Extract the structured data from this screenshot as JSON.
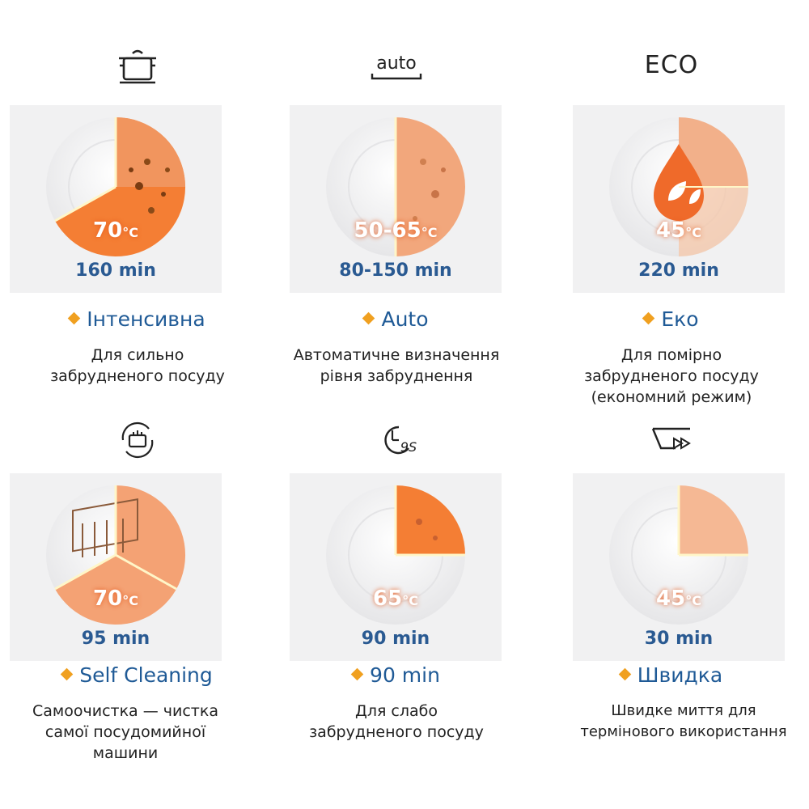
{
  "programs": [
    {
      "icon": "pot-icon",
      "temp_value": "70",
      "temp_unit": "°C",
      "time": "160 min",
      "title": "Інтенсивна",
      "desc_line1": "Для сильно",
      "desc_line2": "забрудненого посуду",
      "desc_line3": ""
    },
    {
      "icon": "auto-icon",
      "icon_text": "auto",
      "temp_value": "50-65",
      "temp_unit": "°C",
      "time": "80-150 min",
      "title": "Auto",
      "desc_line1": "Автоматичне визначення",
      "desc_line2": "рівня забруднення",
      "desc_line3": ""
    },
    {
      "icon": "eco-icon",
      "icon_text": "ECO",
      "temp_value": "45",
      "temp_unit": "°C",
      "time": "220 min",
      "title": "Еко",
      "desc_line1": "Для помірно",
      "desc_line2": "забрудненого посуду",
      "desc_line3": "(економний режим)"
    },
    {
      "icon": "self-clean-icon",
      "temp_value": "70",
      "temp_unit": "°C",
      "time": "95 min",
      "title": "Self Cleaning",
      "desc_line1": "Самоочистка — чистка",
      "desc_line2": "самої посудомийної",
      "desc_line3": "машини"
    },
    {
      "icon": "90-min-icon",
      "temp_value": "65",
      "temp_unit": "°C",
      "time": "90 min",
      "title": "90 min",
      "desc_line1": "Для слабо",
      "desc_line2": "забрудненого посуду",
      "desc_line3": ""
    },
    {
      "icon": "quick-icon",
      "temp_value": "45",
      "temp_unit": "°C",
      "time": "30 min",
      "title": "Швидка",
      "desc_line1": "Швидке миття для",
      "desc_line2": "термінового використання",
      "desc_line3": ""
    }
  ],
  "colors": {
    "accent": "#f0a020",
    "title": "#1f5a96",
    "time": "#2a5a92",
    "orange": "#f07a3a",
    "card_bg": "#f1f1f2"
  }
}
